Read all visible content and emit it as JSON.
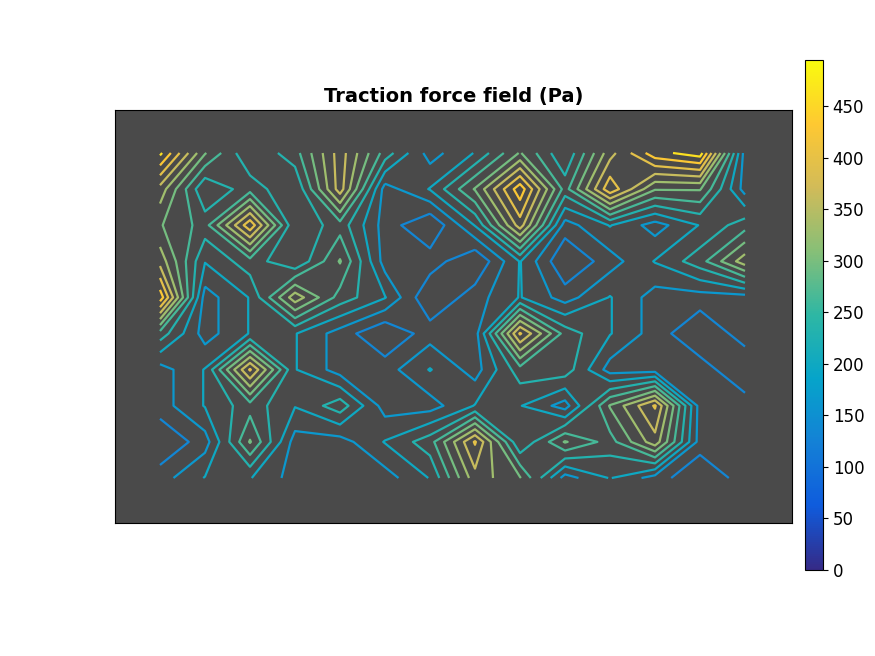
{
  "chart_data": {
    "type": "contour",
    "title": "Traction force field (Pa)",
    "tick_labels": false,
    "cells": [
      [
        470,
        300,
        200,
        250,
        380,
        250,
        150,
        200,
        300,
        200,
        350,
        450,
        480,
        150
      ],
      [
        350,
        200,
        250,
        200,
        380,
        150,
        200,
        300,
        450,
        250,
        420,
        300,
        300,
        150
      ],
      [
        300,
        250,
        420,
        200,
        250,
        150,
        100,
        200,
        380,
        150,
        200,
        150,
        200,
        250
      ],
      [
        350,
        200,
        250,
        200,
        300,
        150,
        150,
        100,
        200,
        100,
        150,
        200,
        250,
        350
      ],
      [
        450,
        150,
        200,
        350,
        250,
        200,
        100,
        150,
        200,
        150,
        200,
        150,
        150,
        150
      ],
      [
        250,
        150,
        200,
        200,
        150,
        100,
        150,
        150,
        400,
        250,
        200,
        150,
        100,
        150
      ],
      [
        150,
        200,
        400,
        200,
        150,
        150,
        200,
        150,
        250,
        250,
        150,
        150,
        150,
        100
      ],
      [
        150,
        200,
        250,
        200,
        250,
        150,
        150,
        200,
        200,
        150,
        300,
        400,
        150,
        150
      ],
      [
        100,
        150,
        300,
        150,
        150,
        200,
        250,
        400,
        200,
        300,
        250,
        350,
        150,
        150
      ],
      [
        150,
        200,
        200,
        150,
        150,
        150,
        200,
        350,
        300,
        150,
        200,
        150,
        100,
        150
      ]
    ],
    "colorbar": {
      "range": [
        0,
        495
      ],
      "ticks": [
        0,
        50,
        100,
        150,
        200,
        250,
        300,
        350,
        400,
        450
      ]
    }
  }
}
